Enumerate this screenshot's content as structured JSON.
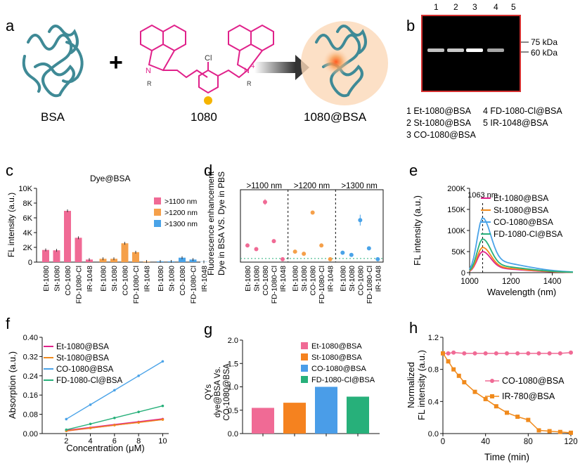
{
  "panel_letters": [
    "a",
    "b",
    "c",
    "d",
    "e",
    "f",
    "g",
    "h"
  ],
  "panel_a": {
    "bsa_label": "BSA",
    "dye_label": "1080",
    "product_label": "1080@BSA",
    "plus": "+",
    "atom_cl": "Cl",
    "atom_n1": "N",
    "atom_n2": "N",
    "plus_charge": "+",
    "r1": "R",
    "r2": "R"
  },
  "panel_b": {
    "lanes": [
      "1",
      "2",
      "3",
      "4",
      "5"
    ],
    "markers": [
      "75 kDa",
      "60 kDa"
    ],
    "band_intensity": [
      0.55,
      0.6,
      1.0,
      0.35,
      0.0
    ],
    "legend": [
      "1  Et-1080@BSA",
      "2  St-1080@BSA",
      "3  CO-1080@BSA",
      "4  FD-1080-Cl@BSA",
      "5  IR-1048@BSA"
    ]
  },
  "colors": {
    "pink": "#f06a95",
    "orange": "#f5a04a",
    "blue": "#4aa3e8",
    "green": "#27b07a",
    "magenta": "#e0218a",
    "orange2": "#f08a1c",
    "lightblue": "#5ab4ea",
    "gel_border": "#d43030",
    "arrow": "#555555",
    "protein": "#3f8a96"
  },
  "chart_data": [
    {
      "id": "c",
      "type": "bar",
      "title": "Dye@BSA",
      "ylabel": "FL intensity (a.u.)",
      "ylim": [
        0,
        10000
      ],
      "yticks": [
        "0",
        "2K",
        "4K",
        "6K",
        "8K",
        "10K"
      ],
      "categories": [
        "Et-1080",
        "St-1080",
        "CO-1080",
        "FD-1080-Cl",
        "IR-1048"
      ],
      "series": [
        {
          "name": ">1100 nm",
          "color": "#f06a95",
          "values": [
            1650,
            1600,
            6950,
            3300,
            350
          ]
        },
        {
          "name": ">1200 nm",
          "color": "#f5a04a",
          "values": [
            450,
            450,
            2550,
            1350,
            80
          ]
        },
        {
          "name": ">1300 nm",
          "color": "#4aa3e8",
          "values": [
            100,
            100,
            600,
            350,
            30
          ]
        }
      ],
      "legend_position": "top-right"
    },
    {
      "id": "d",
      "type": "scatter",
      "ylabel_lines": [
        "Fluorescence enhancement",
        "Dye in BSA VS. Dye in PBS"
      ],
      "ylim": [
        0,
        20
      ],
      "groups": [
        ">1100 nm",
        ">1200 nm",
        ">1300 nm"
      ],
      "categories": [
        "Et-1080",
        "St-1080",
        "CO-1080",
        "FD-1080-Cl",
        "IR-1048"
      ],
      "series": [
        {
          "name": ">1100 nm",
          "color": "#f06a95",
          "values": [
            4.6,
            3.6,
            16.6,
            5.8,
            0.8
          ],
          "errors": [
            0,
            0,
            0.8,
            0,
            0
          ]
        },
        {
          "name": ">1200 nm",
          "color": "#f5a04a",
          "values": [
            2.9,
            2.3,
            13.7,
            4.6,
            0.8
          ],
          "errors": [
            0,
            0,
            0.4,
            0,
            0
          ]
        },
        {
          "name": ">1300 nm",
          "color": "#4aa3e8",
          "values": [
            2.6,
            2.0,
            11.6,
            3.8,
            0.8
          ],
          "errors": [
            0,
            0,
            1.5,
            0,
            0
          ]
        }
      ],
      "baseline": 1
    },
    {
      "id": "e",
      "type": "line",
      "xlabel": "Wavelength (nm)",
      "ylabel": "FL intensity (a.u.)",
      "xlim": [
        1000,
        1500
      ],
      "ylim": [
        0,
        200000
      ],
      "xticks": [
        "1000",
        "1200",
        "1400"
      ],
      "yticks": [
        "0",
        "50K",
        "100K",
        "150K",
        "200K"
      ],
      "annotation": "1063 nm",
      "series": [
        {
          "name": "Et-1080@BSA",
          "color": "#e0218a",
          "peak": 50000
        },
        {
          "name": "St-1080@BSA",
          "color": "#f08a1c",
          "peak": 60000
        },
        {
          "name": "CO-1080@BSA",
          "color": "#4aa3e8",
          "peak": 130000
        },
        {
          "name": "FD-1080-Cl@BSA",
          "color": "#27b07a",
          "peak": 80000
        }
      ]
    },
    {
      "id": "f",
      "type": "line",
      "xlabel": "Concentration (μM)",
      "ylabel": "Absorption (a.u.)",
      "xlim": [
        0,
        10.5
      ],
      "ylim": [
        0,
        0.4
      ],
      "xticks": [
        "2",
        "4",
        "6",
        "8",
        "10"
      ],
      "yticks": [
        "0.00",
        "0.08",
        "0.16",
        "0.24",
        "0.32",
        "0.40"
      ],
      "x": [
        2,
        4,
        6,
        8,
        10
      ],
      "series": [
        {
          "name": "Et-1080@BSA",
          "color": "#e0218a",
          "values": [
            0.012,
            0.024,
            0.036,
            0.048,
            0.06
          ]
        },
        {
          "name": "St-1080@BSA",
          "color": "#f08a1c",
          "values": [
            0.011,
            0.023,
            0.035,
            0.046,
            0.058
          ]
        },
        {
          "name": "CO-1080@BSA",
          "color": "#4aa3e8",
          "values": [
            0.06,
            0.12,
            0.18,
            0.24,
            0.3
          ]
        },
        {
          "name": "FD-1080-Cl@BSA",
          "color": "#27b07a",
          "values": [
            0.016,
            0.04,
            0.065,
            0.09,
            0.115
          ]
        }
      ]
    },
    {
      "id": "g",
      "type": "bar",
      "ylabel_lines": [
        "QYs",
        "dye@BSA Vs.",
        "CO-1080@BSA"
      ],
      "ylim": [
        0,
        2
      ],
      "yticks": [
        "0.0",
        "0.5",
        "1.0",
        "1.5",
        "2.0"
      ],
      "series": [
        {
          "name": "Et-1080@BSA",
          "color": "#f06a95",
          "value": 0.55
        },
        {
          "name": "St-1080@BSA",
          "color": "#f5821f",
          "value": 0.66
        },
        {
          "name": "CO-1080@BSA",
          "color": "#4a9de8",
          "value": 1.0
        },
        {
          "name": "FD-1080-Cl@BSA",
          "color": "#27b07a",
          "value": 0.79
        }
      ]
    },
    {
      "id": "h",
      "type": "line",
      "xlabel": "Time (min)",
      "ylabel_lines": [
        "Normalized",
        "FL intensity (a.u.)"
      ],
      "xlim": [
        0,
        120
      ],
      "ylim": [
        0,
        1.2
      ],
      "xticks": [
        "0",
        "40",
        "80",
        "120"
      ],
      "yticks": [
        "0.0",
        "0.4",
        "0.8",
        "1.2"
      ],
      "series": [
        {
          "name": "CO-1080@BSA",
          "color": "#f06a95",
          "marker": "circle",
          "x": [
            0,
            5,
            10,
            20,
            30,
            40,
            50,
            60,
            70,
            80,
            90,
            100,
            110,
            120
          ],
          "values": [
            1.0,
            1.0,
            1.01,
            1.0,
            1.0,
            1.0,
            1.0,
            1.0,
            1.0,
            1.0,
            1.0,
            1.0,
            1.0,
            1.01
          ]
        },
        {
          "name": "IR-780@BSA",
          "color": "#f08a1c",
          "marker": "square",
          "x": [
            0,
            5,
            10,
            15,
            20,
            30,
            40,
            50,
            60,
            70,
            80,
            90,
            100,
            110,
            120
          ],
          "values": [
            1.0,
            0.9,
            0.8,
            0.72,
            0.64,
            0.52,
            0.43,
            0.34,
            0.26,
            0.21,
            0.17,
            0.04,
            0.03,
            0.02,
            0.01
          ]
        }
      ]
    }
  ]
}
